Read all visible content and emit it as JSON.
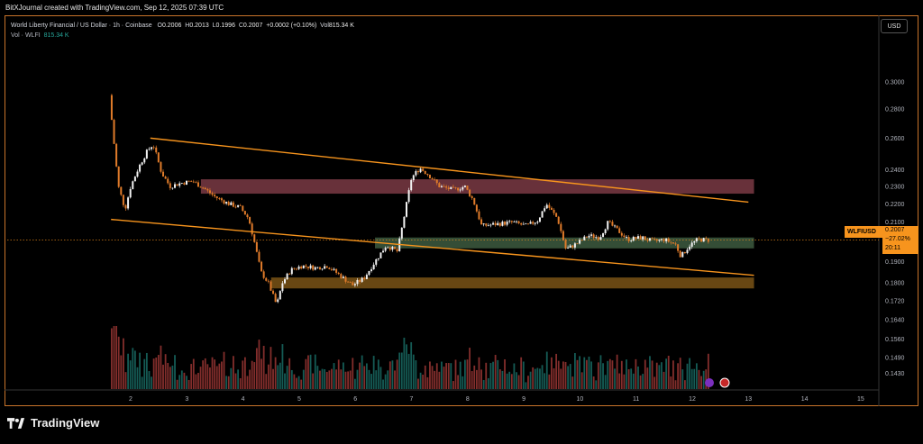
{
  "credit": "BitXJournal created with TradingView.com, Sep 12, 2025 07:39 UTC",
  "header": {
    "symbol": "World Liberty Financial / US Dollar · 1h · Coinbase",
    "o_label": "O",
    "o": "0.2006",
    "h_label": "H",
    "h": "0.2013",
    "l_label": "L",
    "l": "0.1996",
    "c_label": "C",
    "c": "0.2007",
    "change": "+0.0002 (+0.10%)",
    "vol_label": "Vol",
    "vol": "815.34 K"
  },
  "volume_legend": {
    "label": "Vol · WLFI",
    "value": "815.34 K"
  },
  "currency_button": "USD",
  "price_tag": {
    "symbol": "WLFIUSD",
    "price": "0.2007",
    "change": "−27.02%",
    "countdown": "20:11"
  },
  "brand": "TradingView",
  "colors": {
    "up": "#26a69a",
    "down": "#ef5350",
    "candle_up": "#f2f2f2",
    "candle_down": "#e07b2a",
    "trend": "#f7941d",
    "resistance": "#7a3a44",
    "support_green": "#3d5a3f",
    "support_orange": "#7a5316"
  },
  "chart_data": {
    "type": "candlestick",
    "title": "World Liberty Financial / US Dollar · 1h · Coinbase",
    "xlabel": "",
    "ylabel": "",
    "x_ticks": [
      "2",
      "3",
      "4",
      "5",
      "6",
      "7",
      "8",
      "9",
      "10",
      "11",
      "12",
      "13",
      "14",
      "15"
    ],
    "y_ticks": [
      "0.3000",
      "0.2800",
      "0.2600",
      "0.2400",
      "0.2300",
      "0.2200",
      "0.2100",
      "0.1900",
      "0.1800",
      "0.1720",
      "0.1640",
      "0.1560",
      "0.1490",
      "0.1430"
    ],
    "y_scale": "log",
    "last_price": 0.2007,
    "zones": [
      {
        "name": "resistance",
        "from": 0.2258,
        "to": 0.2342,
        "x_from": 3.25,
        "x_to": 13.1
      },
      {
        "name": "support-upper",
        "from": 0.1965,
        "to": 0.202,
        "x_from": 6.35,
        "x_to": 13.1
      },
      {
        "name": "support-lower",
        "from": 0.1775,
        "to": 0.1825,
        "x_from": 4.5,
        "x_to": 13.1
      }
    ],
    "trendlines": [
      {
        "name": "channel-top",
        "x": [
          2.35,
          13.0
        ],
        "y": [
          0.26,
          0.221
        ]
      },
      {
        "name": "channel-bottom",
        "x": [
          1.65,
          13.1
        ],
        "y": [
          0.2115,
          0.1835
        ]
      }
    ],
    "price_path": [
      [
        1.62,
        0.29
      ],
      [
        1.68,
        0.265
      ],
      [
        1.78,
        0.23
      ],
      [
        1.9,
        0.217
      ],
      [
        2.0,
        0.23
      ],
      [
        2.15,
        0.242
      ],
      [
        2.3,
        0.252
      ],
      [
        2.4,
        0.256
      ],
      [
        2.55,
        0.238
      ],
      [
        2.7,
        0.23
      ],
      [
        2.9,
        0.232
      ],
      [
        3.1,
        0.233
      ],
      [
        3.3,
        0.229
      ],
      [
        3.5,
        0.224
      ],
      [
        3.75,
        0.22
      ],
      [
        3.95,
        0.218
      ],
      [
        4.1,
        0.212
      ],
      [
        4.2,
        0.2
      ],
      [
        4.32,
        0.185
      ],
      [
        4.45,
        0.18
      ],
      [
        4.6,
        0.17
      ],
      [
        4.7,
        0.18
      ],
      [
        4.85,
        0.186
      ],
      [
        5.05,
        0.188
      ],
      [
        5.3,
        0.187
      ],
      [
        5.5,
        0.188
      ],
      [
        5.75,
        0.183
      ],
      [
        5.95,
        0.179
      ],
      [
        6.15,
        0.182
      ],
      [
        6.35,
        0.19
      ],
      [
        6.55,
        0.198
      ],
      [
        6.75,
        0.195
      ],
      [
        6.85,
        0.21
      ],
      [
        7.0,
        0.235
      ],
      [
        7.15,
        0.241
      ],
      [
        7.3,
        0.237
      ],
      [
        7.5,
        0.23
      ],
      [
        7.75,
        0.228
      ],
      [
        7.95,
        0.23
      ],
      [
        8.1,
        0.222
      ],
      [
        8.25,
        0.208
      ],
      [
        8.5,
        0.209
      ],
      [
        8.8,
        0.21
      ],
      [
        9.05,
        0.208
      ],
      [
        9.25,
        0.211
      ],
      [
        9.4,
        0.22
      ],
      [
        9.6,
        0.212
      ],
      [
        9.75,
        0.196
      ],
      [
        9.95,
        0.199
      ],
      [
        10.15,
        0.203
      ],
      [
        10.35,
        0.202
      ],
      [
        10.5,
        0.21
      ],
      [
        10.7,
        0.205
      ],
      [
        10.85,
        0.201
      ],
      [
        11.1,
        0.202
      ],
      [
        11.3,
        0.2
      ],
      [
        11.5,
        0.201
      ],
      [
        11.7,
        0.1985
      ],
      [
        11.8,
        0.1925
      ],
      [
        11.95,
        0.198
      ],
      [
        12.1,
        0.201
      ],
      [
        12.3,
        0.2007
      ]
    ]
  }
}
